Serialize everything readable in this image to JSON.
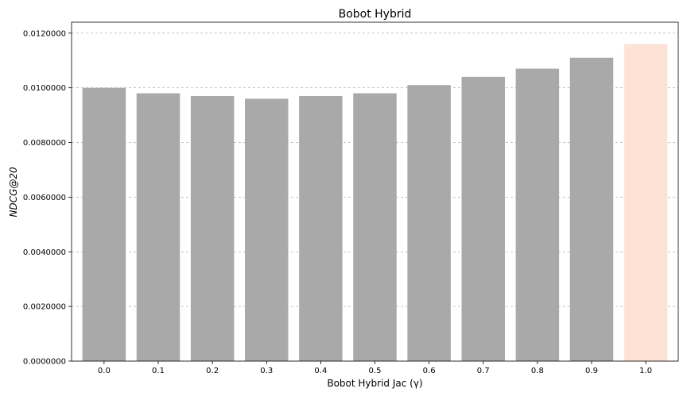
{
  "chart_data": {
    "type": "bar",
    "title": "Bobot Hybrid",
    "xlabel": "Bobot Hybrid Jac (γ)",
    "ylabel": "NDCG@20",
    "categories": [
      "0.0",
      "0.1",
      "0.2",
      "0.3",
      "0.4",
      "0.5",
      "0.6",
      "0.7",
      "0.8",
      "0.9",
      "1.0"
    ],
    "values": [
      0.01,
      0.0098,
      0.0097,
      0.0096,
      0.0097,
      0.0098,
      0.0101,
      0.0104,
      0.0107,
      0.0111,
      0.0116
    ],
    "colors": [
      "#a9a9a9",
      "#a9a9a9",
      "#a9a9a9",
      "#a9a9a9",
      "#a9a9a9",
      "#a9a9a9",
      "#a9a9a9",
      "#a9a9a9",
      "#a9a9a9",
      "#a9a9a9",
      "#fde3d6"
    ],
    "ylim": [
      0,
      0.0124
    ],
    "yticks": [
      "0.0000000",
      "0.0020000",
      "0.0040000",
      "0.0060000",
      "0.0080000",
      "0.0100000",
      "0.0120000"
    ],
    "ytick_values": [
      0,
      0.002,
      0.004,
      0.006,
      0.008,
      0.01,
      0.012
    ],
    "grid": "y-dashed",
    "legend": "none"
  }
}
